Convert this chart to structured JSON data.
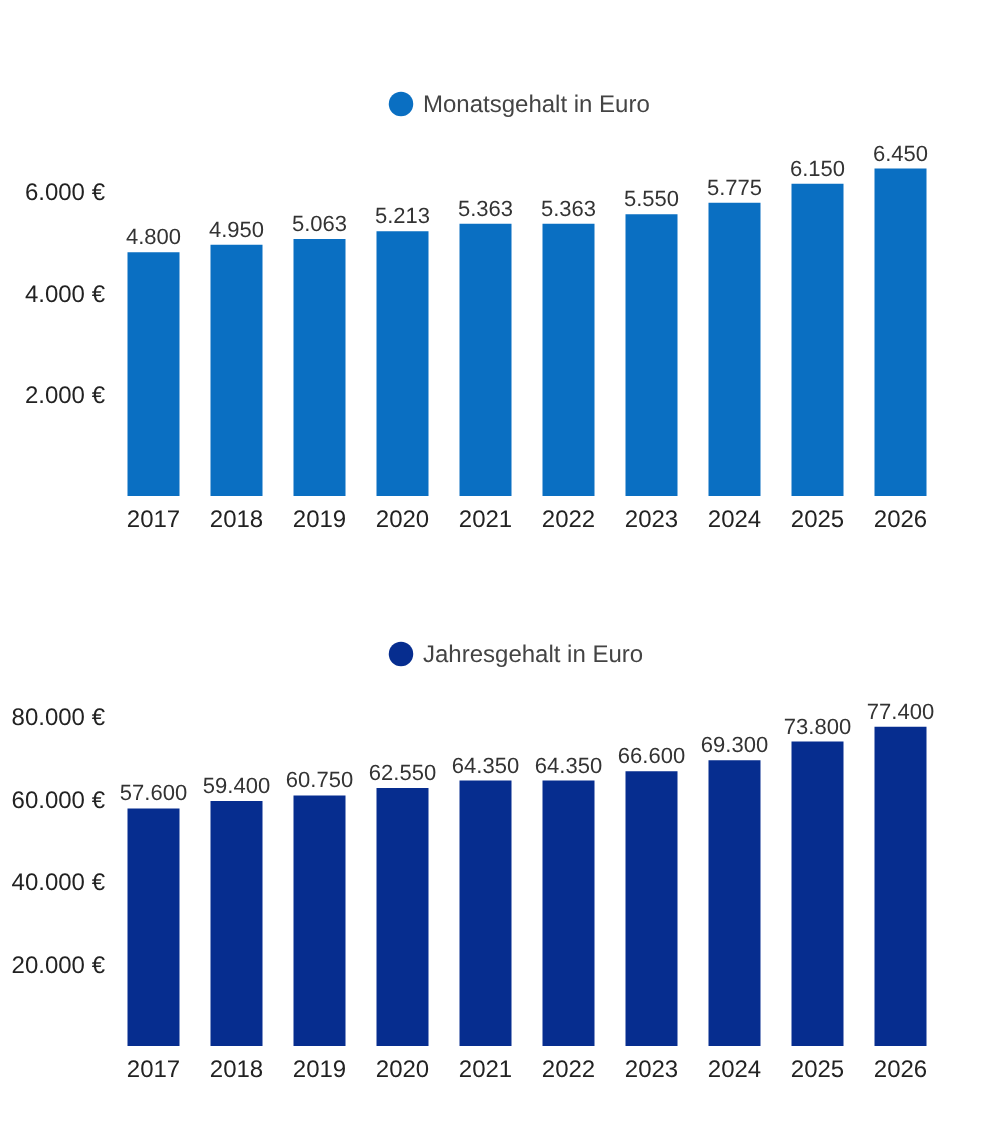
{
  "chart_data": [
    {
      "type": "bar",
      "categories": [
        "2017",
        "2018",
        "2019",
        "2020",
        "2021",
        "2022",
        "2023",
        "2024",
        "2025",
        "2026"
      ],
      "series": [
        {
          "name": "Monatsgehalt in Euro",
          "color": "#0a6fc2",
          "values": [
            4800,
            4950,
            5063,
            5213,
            5363,
            5363,
            5550,
            5775,
            6150,
            6450
          ],
          "value_labels": [
            "4.800",
            "4.950",
            "5.063",
            "5.213",
            "5.363",
            "5.363",
            "5.550",
            "5.775",
            "6.150",
            "6.450"
          ]
        }
      ],
      "ylim": [
        0,
        6500
      ],
      "yticks": [
        {
          "value": 2000,
          "label": "2.000 €"
        },
        {
          "value": 4000,
          "label": "4.000 €"
        },
        {
          "value": 6000,
          "label": "6.000 €"
        }
      ],
      "legend": "top"
    },
    {
      "type": "bar",
      "categories": [
        "2017",
        "2018",
        "2019",
        "2020",
        "2021",
        "2022",
        "2023",
        "2024",
        "2025",
        "2026"
      ],
      "series": [
        {
          "name": "Jahresgehalt in Euro",
          "color": "#062d8f",
          "values": [
            57600,
            59400,
            60750,
            62550,
            64350,
            64350,
            66600,
            69300,
            73800,
            77400
          ],
          "value_labels": [
            "57.600",
            "59.400",
            "60.750",
            "62.550",
            "64.350",
            "64.350",
            "66.600",
            "69.300",
            "73.800",
            "77.400"
          ]
        }
      ],
      "ylim": [
        0,
        80000
      ],
      "yticks": [
        {
          "value": 20000,
          "label": "20.000 €"
        },
        {
          "value": 40000,
          "label": "40.000 €"
        },
        {
          "value": 60000,
          "label": "60.000 €"
        },
        {
          "value": 80000,
          "label": "80.000 €"
        }
      ],
      "legend": "top"
    }
  ]
}
